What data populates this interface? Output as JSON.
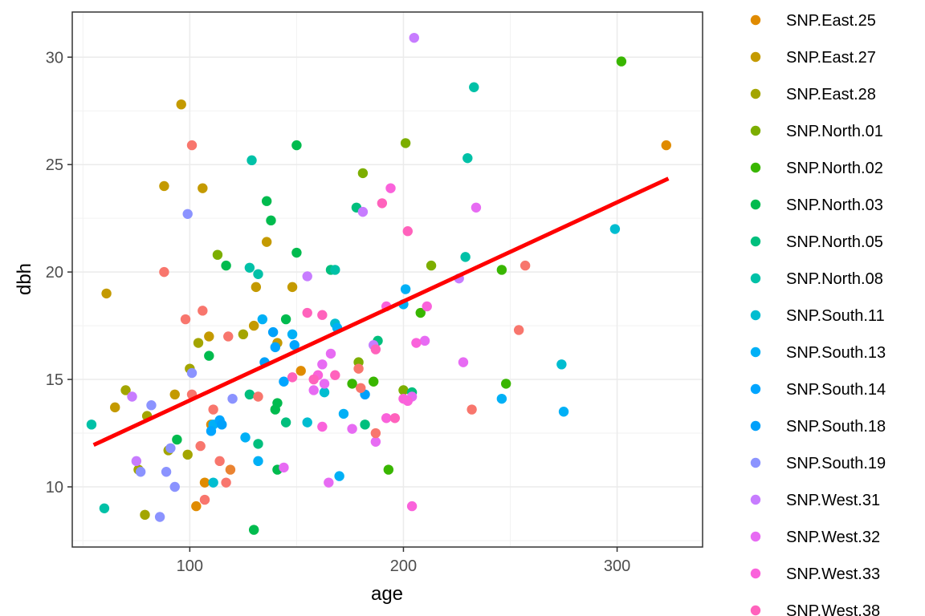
{
  "chart_data": {
    "type": "scatter",
    "xlabel": "age",
    "ylabel": "dbh",
    "xlim": [
      45,
      340
    ],
    "ylim": [
      7.2,
      32.1
    ],
    "x_ticks": [
      100,
      200,
      300
    ],
    "y_ticks": [
      10,
      15,
      20,
      25,
      30
    ],
    "grid": true,
    "legend_position": "right",
    "trend_line": {
      "x": [
        55,
        324
      ],
      "y": [
        11.95,
        24.35
      ],
      "color": "#FF0000"
    },
    "series": [
      {
        "name": "SNP.East.25",
        "color": "#E08B00",
        "points": [
          [
            323,
            25.9
          ],
          [
            107,
            10.2
          ],
          [
            103,
            9.1
          ],
          [
            110,
            12.9
          ],
          [
            152,
            15.4
          ]
        ]
      },
      {
        "name": "SNP.East.27",
        "color": "#C49A00",
        "points": [
          [
            88,
            24.0
          ],
          [
            106,
            23.9
          ],
          [
            96,
            27.8
          ],
          [
            61,
            19.0
          ],
          [
            136,
            21.4
          ],
          [
            131,
            19.3
          ],
          [
            148,
            19.3
          ],
          [
            130,
            17.5
          ],
          [
            141,
            16.7
          ],
          [
            109,
            17.0
          ],
          [
            93,
            14.3
          ],
          [
            65,
            13.7
          ]
        ]
      },
      {
        "name": "SNP.East.28",
        "color": "#A3A500",
        "points": [
          [
            70,
            14.5
          ],
          [
            80,
            13.3
          ],
          [
            90,
            11.7
          ],
          [
            99,
            11.5
          ],
          [
            76,
            10.8
          ],
          [
            79,
            8.7
          ],
          [
            100,
            15.5
          ],
          [
            104,
            16.7
          ],
          [
            125,
            17.1
          ]
        ]
      },
      {
        "name": "SNP.North.01",
        "color": "#7CAE00",
        "points": [
          [
            201,
            26.0
          ],
          [
            181,
            24.6
          ],
          [
            213,
            20.3
          ],
          [
            113,
            20.8
          ],
          [
            179,
            15.8
          ],
          [
            200,
            14.5
          ]
        ]
      },
      {
        "name": "SNP.North.02",
        "color": "#39B600",
        "points": [
          [
            302,
            29.8
          ],
          [
            246,
            20.1
          ],
          [
            208,
            18.1
          ],
          [
            248,
            14.8
          ],
          [
            186,
            14.9
          ],
          [
            176,
            14.8
          ],
          [
            193,
            10.8
          ]
        ]
      },
      {
        "name": "SNP.North.03",
        "color": "#00BB4E",
        "points": [
          [
            150,
            25.9
          ],
          [
            136,
            23.3
          ],
          [
            138,
            22.4
          ],
          [
            150,
            20.9
          ],
          [
            117,
            20.3
          ],
          [
            109,
            16.1
          ],
          [
            94,
            12.2
          ],
          [
            141,
            13.9
          ],
          [
            140,
            13.6
          ],
          [
            145,
            17.8
          ],
          [
            141,
            10.8
          ],
          [
            130,
            8.0
          ]
        ]
      },
      {
        "name": "SNP.North.05",
        "color": "#00BF7D",
        "points": [
          [
            178,
            23.0
          ],
          [
            166,
            20.1
          ],
          [
            188,
            16.8
          ],
          [
            145,
            13.0
          ],
          [
            128,
            14.3
          ],
          [
            132,
            12.0
          ],
          [
            182,
            12.9
          ],
          [
            204,
            14.4
          ]
        ]
      },
      {
        "name": "SNP.North.08",
        "color": "#00C1A7",
        "points": [
          [
            233,
            28.6
          ],
          [
            230,
            25.3
          ],
          [
            229,
            20.7
          ],
          [
            129,
            25.2
          ],
          [
            128,
            20.2
          ],
          [
            132,
            19.9
          ],
          [
            168,
            20.1
          ],
          [
            54,
            12.9
          ],
          [
            60,
            9.0
          ]
        ]
      },
      {
        "name": "SNP.South.11",
        "color": "#00BDD0",
        "points": [
          [
            299,
            22.0
          ],
          [
            274,
            15.7
          ],
          [
            168,
            17.6
          ],
          [
            163,
            14.4
          ],
          [
            111,
            10.2
          ],
          [
            155,
            13.0
          ]
        ]
      },
      {
        "name": "SNP.South.13",
        "color": "#00B0F6",
        "points": [
          [
            201,
            19.2
          ],
          [
            200,
            18.5
          ],
          [
            148,
            17.1
          ],
          [
            134,
            17.8
          ],
          [
            111,
            12.9
          ],
          [
            126,
            12.3
          ],
          [
            132,
            11.2
          ],
          [
            169,
            17.4
          ],
          [
            172,
            13.4
          ],
          [
            170,
            10.5
          ],
          [
            275,
            13.5
          ],
          [
            246,
            14.1
          ]
        ]
      },
      {
        "name": "SNP.South.14",
        "color": "#00A5FF",
        "points": [
          [
            144,
            14.9
          ],
          [
            149,
            16.6
          ],
          [
            140,
            16.5
          ],
          [
            110,
            12.6
          ],
          [
            114,
            13.1
          ]
        ]
      },
      {
        "name": "SNP.South.18",
        "color": "#00A0FA",
        "points": [
          [
            139,
            17.2
          ],
          [
            135,
            15.8
          ],
          [
            182,
            14.3
          ],
          [
            115,
            12.9
          ]
        ]
      },
      {
        "name": "SNP.South.19",
        "color": "#8B93FF",
        "points": [
          [
            99,
            22.7
          ],
          [
            101,
            15.3
          ],
          [
            82,
            13.8
          ],
          [
            77,
            10.7
          ],
          [
            89,
            10.7
          ],
          [
            93,
            10.0
          ],
          [
            86,
            8.6
          ],
          [
            91,
            11.8
          ],
          [
            120,
            14.1
          ]
        ]
      },
      {
        "name": "SNP.West.31",
        "color": "#C77CFF",
        "points": [
          [
            205,
            30.9
          ],
          [
            181,
            22.8
          ],
          [
            155,
            19.8
          ],
          [
            73,
            14.2
          ],
          [
            75,
            11.2
          ],
          [
            226,
            19.7
          ],
          [
            186,
            16.6
          ]
        ]
      },
      {
        "name": "SNP.West.32",
        "color": "#E76BF3",
        "points": [
          [
            234,
            23.0
          ],
          [
            210,
            16.8
          ],
          [
            162,
            15.7
          ],
          [
            166,
            16.2
          ],
          [
            228,
            15.8
          ],
          [
            158,
            14.5
          ],
          [
            176,
            12.7
          ],
          [
            165,
            10.2
          ],
          [
            144,
            10.9
          ],
          [
            187,
            12.1
          ],
          [
            204,
            14.2
          ],
          [
            163,
            14.8
          ]
        ]
      },
      {
        "name": "SNP.West.33",
        "color": "#FA62DB",
        "points": [
          [
            194,
            23.9
          ],
          [
            211,
            18.4
          ],
          [
            192,
            18.4
          ],
          [
            206,
            16.7
          ],
          [
            160,
            15.2
          ],
          [
            200,
            14.1
          ],
          [
            202,
            14.0
          ],
          [
            192,
            13.2
          ],
          [
            204,
            9.1
          ],
          [
            162,
            12.8
          ]
        ]
      },
      {
        "name": "SNP.West.38",
        "color": "#FF62BC",
        "points": [
          [
            190,
            23.2
          ],
          [
            202,
            21.9
          ],
          [
            155,
            18.1
          ],
          [
            162,
            18.0
          ],
          [
            148,
            15.1
          ],
          [
            187,
            16.4
          ],
          [
            168,
            15.2
          ],
          [
            158,
            15.0
          ],
          [
            196,
            13.2
          ]
        ]
      },
      {
        "name": "",
        "color": "#F8766D",
        "points": [
          [
            257,
            20.3
          ],
          [
            254,
            17.3
          ],
          [
            101,
            25.9
          ],
          [
            88,
            20.0
          ],
          [
            106,
            18.2
          ],
          [
            98,
            17.8
          ],
          [
            118,
            17.0
          ],
          [
            179,
            15.5
          ],
          [
            105,
            11.9
          ],
          [
            114,
            11.2
          ],
          [
            117,
            10.2
          ],
          [
            132,
            14.2
          ],
          [
            101,
            14.3
          ],
          [
            111,
            13.6
          ],
          [
            180,
            14.6
          ],
          [
            232,
            13.6
          ],
          [
            107,
            9.4
          ],
          [
            187,
            12.5
          ]
        ]
      },
      {
        "name": "",
        "color": "#EA8331",
        "points": [
          [
            119,
            10.8
          ]
        ]
      }
    ]
  }
}
